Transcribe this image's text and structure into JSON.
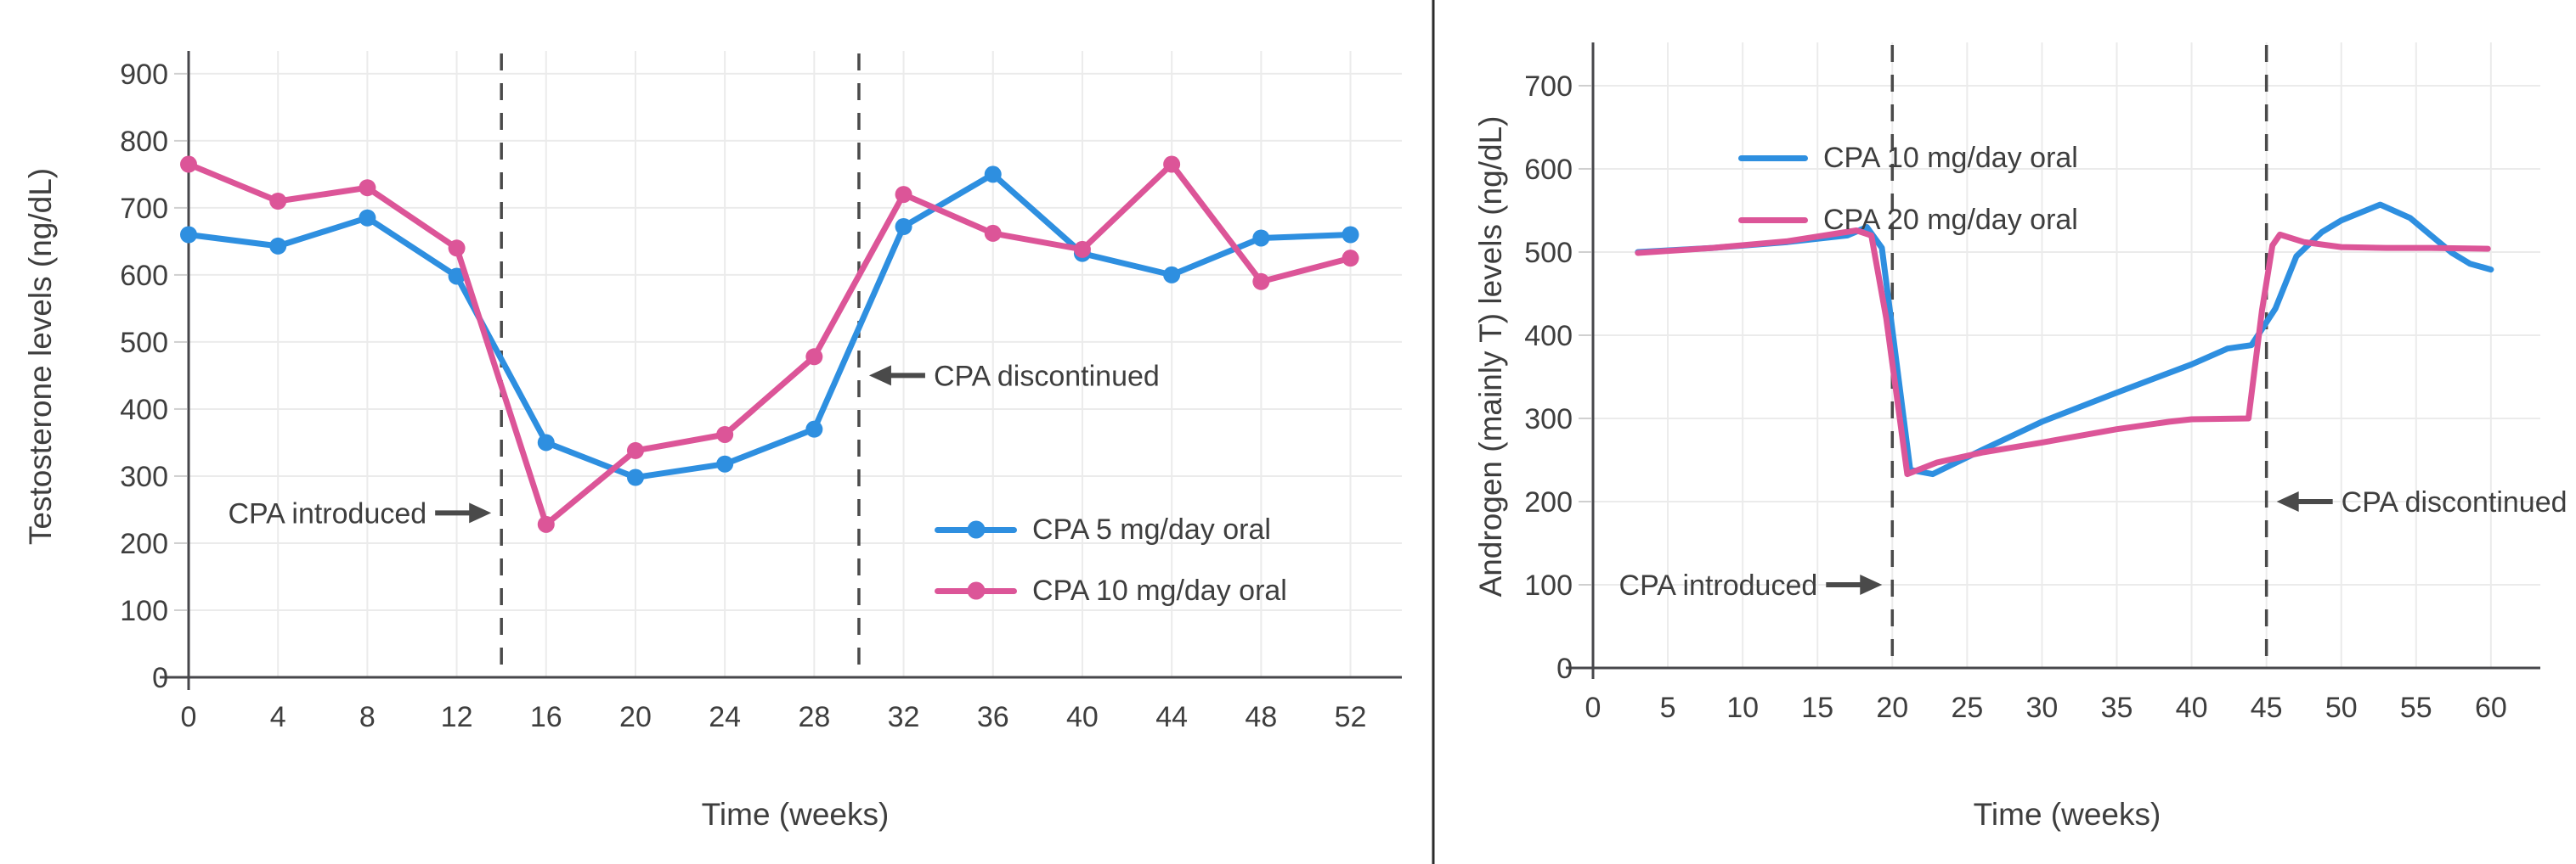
{
  "figure": {
    "background": "#ffffff",
    "divider_color": "#2b2b2b",
    "text_color": "#3e3e3e",
    "grid_color": "#ebebeb",
    "axis_color": "#47474b",
    "dashed_line_color": "#4a4a4a"
  },
  "chart_data": [
    {
      "type": "line",
      "title": "",
      "xlabel": "Time (weeks)",
      "ylabel": "Testosterone levels (ng/dL)",
      "xlim": [
        0,
        54.3
      ],
      "ylim": [
        0,
        934
      ],
      "x_ticks": [
        0,
        4,
        8,
        12,
        16,
        20,
        24,
        28,
        32,
        36,
        40,
        44,
        48,
        52
      ],
      "y_ticks": [
        0,
        100,
        200,
        300,
        400,
        500,
        600,
        700,
        800,
        900
      ],
      "grid": true,
      "legend_position": "inside-center-right",
      "series": [
        {
          "name": "CPA 5 mg/day oral",
          "color": "#2e8fe0",
          "marker": true,
          "x": [
            0,
            4,
            8,
            12,
            16,
            20,
            24,
            28,
            32,
            36,
            40,
            44,
            48,
            52
          ],
          "y": [
            660,
            643,
            685,
            598,
            350,
            298,
            318,
            370,
            672,
            750,
            632,
            600,
            655,
            660
          ]
        },
        {
          "name": "CPA 10 mg/day oral",
          "color": "#dc5598",
          "marker": true,
          "x": [
            0,
            4,
            8,
            12,
            16,
            20,
            24,
            28,
            32,
            36,
            40,
            44,
            48,
            52
          ],
          "y": [
            765,
            710,
            730,
            640,
            228,
            338,
            362,
            478,
            720,
            662,
            638,
            765,
            590,
            625
          ]
        }
      ],
      "vlines": [
        {
          "x": 14
        },
        {
          "x": 30
        }
      ],
      "annotations": [
        {
          "text": "CPA introduced",
          "arrow": "right",
          "x": 14,
          "y": 245
        },
        {
          "text": "CPA discontinued",
          "arrow": "left",
          "x": 30,
          "y": 450
        }
      ]
    },
    {
      "type": "line",
      "title": "",
      "xlabel": "Time (weeks)",
      "ylabel": "Androgen (mainly T) levels (ng/dL)",
      "xlim": [
        0,
        63.3
      ],
      "ylim": [
        0,
        752
      ],
      "x_ticks": [
        0,
        5,
        10,
        15,
        20,
        25,
        30,
        35,
        40,
        45,
        50,
        55,
        60
      ],
      "y_ticks": [
        0,
        100,
        200,
        300,
        400,
        500,
        600,
        700
      ],
      "grid": true,
      "legend_position": "inside-top",
      "series": [
        {
          "name": "CPA 10 mg/day oral",
          "color": "#2e8fe0",
          "marker": false,
          "x": [
            3,
            8,
            13,
            17,
            18.3,
            19.3,
            21.2,
            22.7,
            26,
            30,
            35,
            40,
            42.4,
            44,
            45.6,
            47,
            48.7,
            50,
            52.6,
            54.6,
            56,
            57.4,
            58.6,
            60
          ],
          "y": [
            500,
            505,
            512,
            520,
            530,
            505,
            238,
            233,
            262,
            296,
            331,
            365,
            384,
            388,
            432,
            495,
            524,
            538,
            557,
            541,
            520,
            499,
            486,
            479
          ]
        },
        {
          "name": "CPA 20 mg/day oral",
          "color": "#dc5598",
          "marker": false,
          "x": [
            3,
            8,
            13,
            17.6,
            18.6,
            19.6,
            21,
            23,
            26,
            30,
            35,
            38.5,
            40,
            43.8,
            44.7,
            45.4,
            45.9,
            47.5,
            50,
            53,
            56,
            59.8
          ],
          "y": [
            499,
            505,
            513,
            526,
            520,
            420,
            233,
            247,
            259,
            271,
            287,
            296,
            299,
            300,
            430,
            508,
            521,
            512,
            506,
            505,
            505,
            504
          ]
        }
      ],
      "vlines": [
        {
          "x": 20
        },
        {
          "x": 45
        }
      ],
      "annotations": [
        {
          "text": "CPA introduced",
          "arrow": "right",
          "x": 20,
          "y": 100
        },
        {
          "text": "CPA discontinued",
          "arrow": "left",
          "x": 45,
          "y": 200
        }
      ]
    }
  ]
}
